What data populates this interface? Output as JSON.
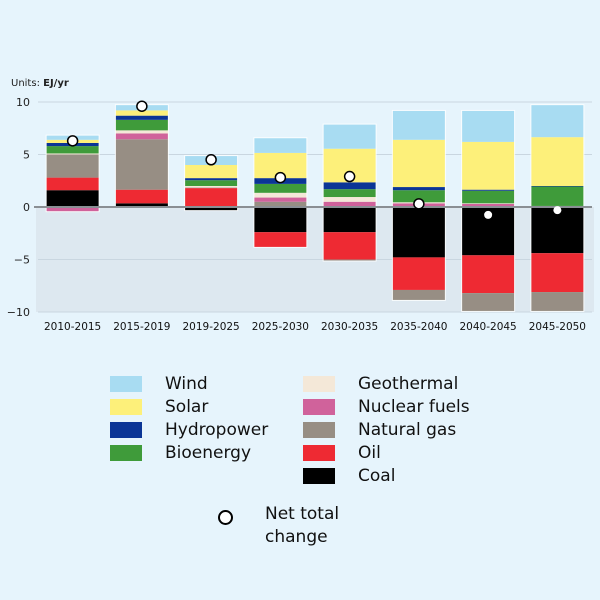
{
  "chart_data": {
    "type": "bar",
    "stacked": true,
    "units_prefix": "Units: ",
    "units": "EJ/yr",
    "title": "",
    "xlabel": "",
    "ylabel": "",
    "ylim": [
      -10,
      10
    ],
    "yticks": [
      10,
      5,
      0,
      -5,
      -10
    ],
    "ytick_labels": [
      "10",
      "5",
      "0",
      "−5",
      "−10"
    ],
    "grid": true,
    "categories": [
      "2010-2015",
      "2015-2019",
      "2019-2025",
      "2025-2030",
      "2030-2035",
      "2035-2040",
      "2040-2045",
      "2045-2050"
    ],
    "series": [
      {
        "name": "Coal",
        "color": "#000000",
        "values": [
          1.6,
          0.35,
          -0.3,
          -2.4,
          -2.4,
          -4.8,
          -4.6,
          -4.4
        ]
      },
      {
        "name": "Oil",
        "color": "#ee2a33",
        "values": [
          1.2,
          1.3,
          1.8,
          -1.4,
          -2.6,
          -3.1,
          -3.6,
          -3.7
        ]
      },
      {
        "name": "Natural gas",
        "color": "#978e84",
        "values": [
          2.2,
          4.8,
          0.05,
          0.5,
          -0.1,
          -0.95,
          -1.7,
          -1.8
        ]
      },
      {
        "name": "Nuclear fuels",
        "color": "#d0629b",
        "values": [
          -0.4,
          0.55,
          0.0,
          0.4,
          0.5,
          0.35,
          0.3,
          0.1
        ]
      },
      {
        "name": "Geothermal",
        "color": "#f4e8d8",
        "values": [
          0.1,
          0.3,
          0.15,
          0.45,
          0.45,
          0.1,
          0.05,
          0.0
        ]
      },
      {
        "name": "Bioenergy",
        "color": "#3f9b3a",
        "values": [
          0.7,
          1.0,
          0.55,
          0.85,
          0.75,
          1.15,
          1.2,
          1.85
        ]
      },
      {
        "name": "Hydropower",
        "color": "#0b3596",
        "values": [
          0.3,
          0.4,
          0.2,
          0.55,
          0.65,
          0.3,
          0.1,
          0.05
        ]
      },
      {
        "name": "Solar",
        "color": "#fdf07a",
        "values": [
          0.3,
          0.5,
          1.25,
          2.4,
          3.2,
          4.5,
          4.55,
          4.65
        ]
      },
      {
        "name": "Wind",
        "color": "#a8dcf2",
        "values": [
          0.4,
          0.5,
          0.85,
          1.4,
          2.3,
          2.75,
          2.95,
          3.05
        ]
      }
    ],
    "net_total_change": {
      "name": "Net total change",
      "values": [
        6.3,
        9.6,
        4.5,
        2.8,
        2.9,
        0.3,
        -0.75,
        -0.3
      ]
    },
    "legend_position": "bottom"
  },
  "legend": {
    "left": [
      {
        "label": "Wind",
        "color": "#a8dcf2"
      },
      {
        "label": "Solar",
        "color": "#fdf07a"
      },
      {
        "label": "Hydropower",
        "color": "#0b3596"
      },
      {
        "label": "Bioenergy",
        "color": "#3f9b3a"
      }
    ],
    "right": [
      {
        "label": "Geothermal",
        "color": "#f4e8d8"
      },
      {
        "label": "Nuclear fuels",
        "color": "#d0629b"
      },
      {
        "label": "Natural gas",
        "color": "#978e84"
      },
      {
        "label": "Oil",
        "color": "#ee2a33"
      },
      {
        "label": "Coal",
        "color": "#000000"
      }
    ],
    "net_label": "Net total change"
  },
  "colors": {
    "background": "#e6f4fc",
    "negative_region": "#dde8f0",
    "zero_line": "#8a8f94",
    "grid": "#c9d6e0"
  }
}
